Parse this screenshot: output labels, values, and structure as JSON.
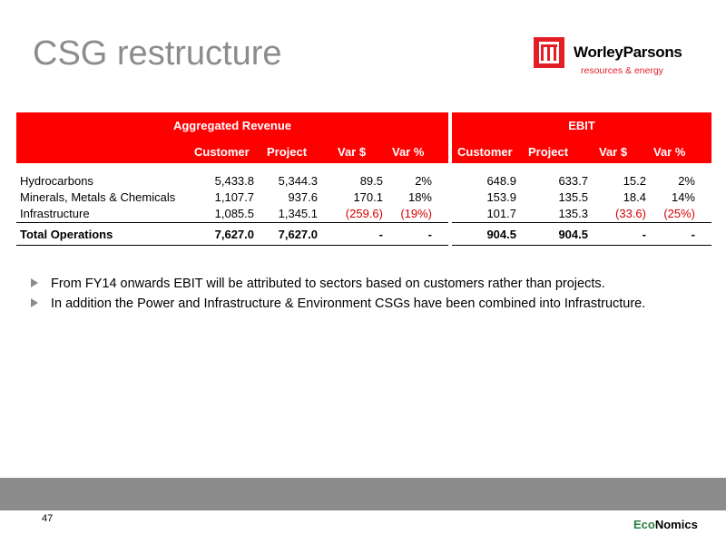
{
  "title": "CSG restructure",
  "logo": {
    "name": "WorleyParsons",
    "tagline": "resources & energy"
  },
  "table": {
    "group_headers": [
      "Aggregated Revenue",
      "EBIT"
    ],
    "columns": [
      "Customer",
      "Project",
      "Var $",
      "Var %",
      "Customer",
      "Project",
      "Var $",
      "Var %"
    ],
    "rows": [
      {
        "label": "Hydrocarbons",
        "values": [
          "5,433.8",
          "5,344.3",
          "89.5",
          "2%",
          "648.9",
          "633.7",
          "15.2",
          "2%"
        ]
      },
      {
        "label": "Minerals, Metals & Chemicals",
        "values": [
          "1,107.7",
          "937.6",
          "170.1",
          "18%",
          "153.9",
          "135.5",
          "18.4",
          "14%"
        ]
      },
      {
        "label": "Infrastructure",
        "values": [
          "1,085.5",
          "1,345.1",
          "(259.6)",
          "(19%)",
          "101.7",
          "135.3",
          "(33.6)",
          "(25%)"
        ]
      }
    ],
    "total": {
      "label": "Total Operations",
      "values": [
        "7,627.0",
        "7,627.0",
        "-",
        "-",
        "904.5",
        "904.5",
        "-",
        "-"
      ]
    }
  },
  "bullets": [
    "From FY14 onwards EBIT will be attributed to sectors based on customers rather than projects.",
    "In addition the Power and Infrastructure & Environment CSGs have been combined into Infrastructure."
  ],
  "footer": {
    "page_number": "47",
    "brand_eco": "Eco",
    "brand_nomics": "Nomics"
  },
  "colors": {
    "header_red": "#ff0000",
    "negative_red": "#d40000",
    "title_gray": "#8c8c8c",
    "footer_gray": "#8c8c8c"
  }
}
